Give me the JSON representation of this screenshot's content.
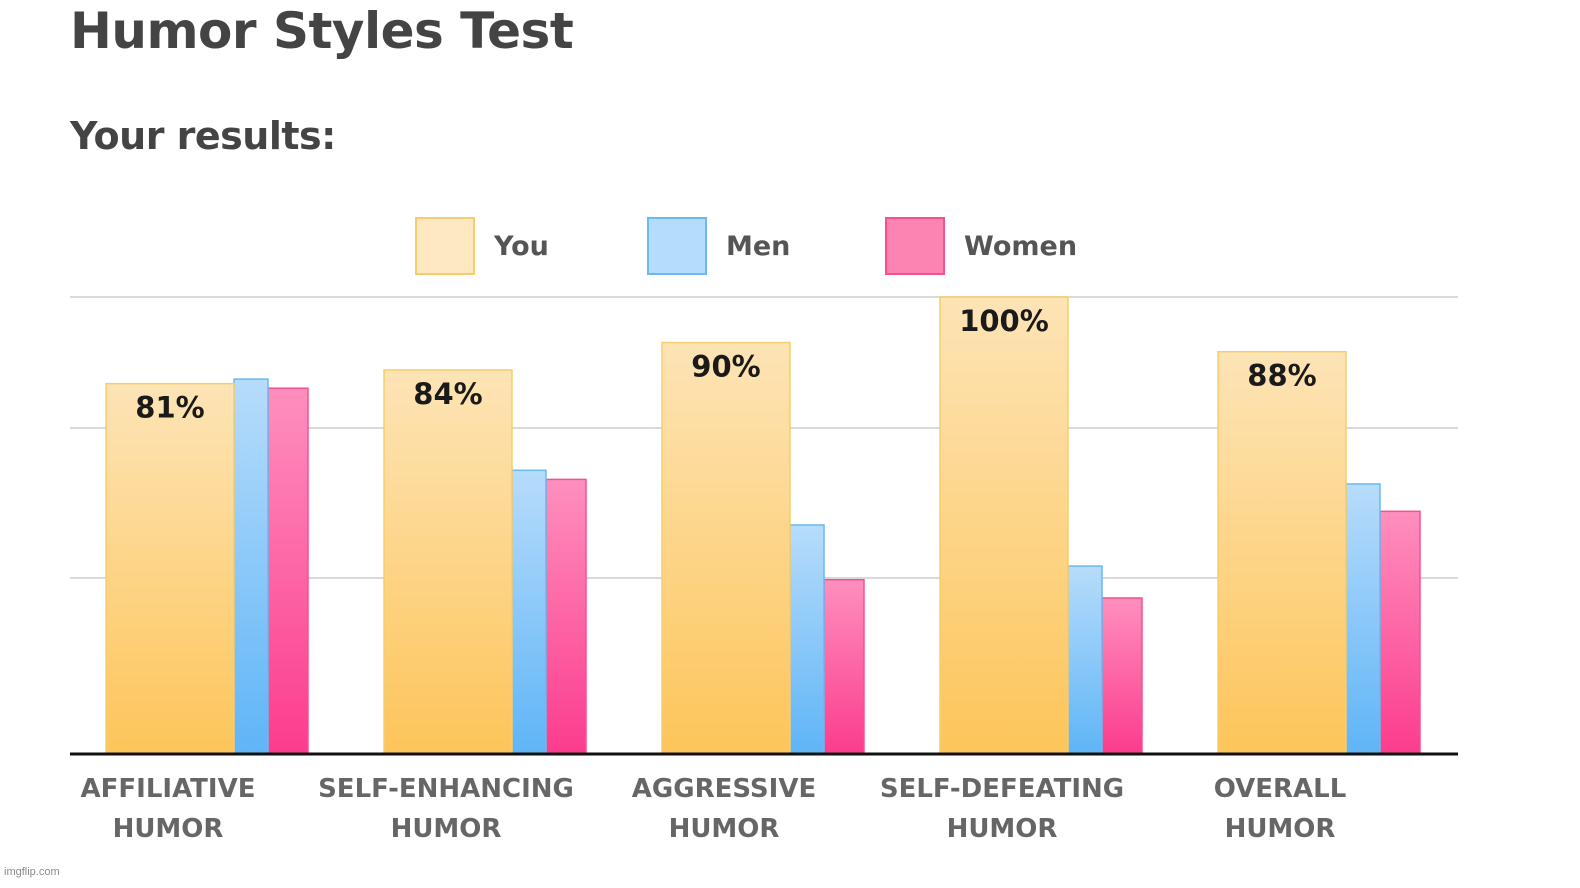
{
  "page": {
    "title": "Humor Styles Test",
    "subtitle": "Your results:",
    "watermark": "imgflip.com"
  },
  "chart_data": {
    "type": "bar",
    "title": "",
    "xlabel": "",
    "ylabel": "",
    "ylim": [
      0,
      100
    ],
    "grid": true,
    "legend_position": "top-center",
    "categories": [
      [
        "AFFILIATIVE",
        "HUMOR"
      ],
      [
        "SELF-ENHANCING",
        "HUMOR"
      ],
      [
        "AGGRESSIVE",
        "HUMOR"
      ],
      [
        "SELF-DEFEATING",
        "HUMOR"
      ],
      [
        "OVERALL",
        "HUMOR"
      ]
    ],
    "series": [
      {
        "name": "You",
        "values": [
          81,
          84,
          90,
          100,
          88
        ],
        "data_labels": [
          "81%",
          "84%",
          "90%",
          "100%",
          "88%"
        ],
        "color_top": "#fde4b6",
        "color_bottom": "#fdc55a",
        "stroke": "#f6cd6c",
        "legend_fill": "#fde8c2"
      },
      {
        "name": "Men",
        "values": [
          82,
          62,
          50,
          41,
          59
        ],
        "color_top": "#b7dcfb",
        "color_bottom": "#5fb5f7",
        "stroke": "#6ab9f0",
        "legend_fill": "#b5dcfb"
      },
      {
        "name": "Women",
        "values": [
          80,
          60,
          38,
          34,
          53
        ],
        "color_top": "#fe8fbd",
        "color_bottom": "#fc3c8e",
        "stroke": "#f7508f",
        "legend_fill": "#fb84b3"
      }
    ]
  }
}
